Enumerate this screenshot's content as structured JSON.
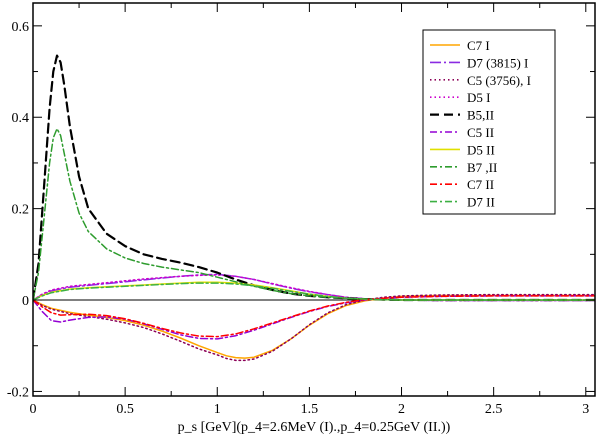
{
  "chart_data": {
    "type": "line",
    "xlabel": "p_s [GeV](p_4=2.6MeV (I).,p_4=0.25GeV (II.))",
    "ylabel": "",
    "xlim": [
      0,
      3.05
    ],
    "ylim": [
      -0.21,
      0.65
    ],
    "xticks": [
      0,
      0.5,
      1,
      1.5,
      2,
      2.5,
      3
    ],
    "xtick_labels": [
      "0",
      "0.5",
      "1",
      "1.5",
      "2",
      "2.5",
      "3"
    ],
    "yticks": [
      -0.2,
      0,
      0.2,
      0.4,
      0.6
    ],
    "ytick_labels": [
      "-0.2",
      "0",
      "0.2",
      "0.4",
      "0.6"
    ],
    "grid": false,
    "legend_position": "top-right",
    "series": [
      {
        "name": "C7 I",
        "color": "#ffa500",
        "dash": "solid",
        "x": [
          0,
          0.05,
          0.1,
          0.2,
          0.3,
          0.4,
          0.5,
          0.6,
          0.7,
          0.8,
          0.9,
          1.0,
          1.05,
          1.1,
          1.15,
          1.2,
          1.3,
          1.4,
          1.5,
          1.6,
          1.7,
          1.8,
          1.9,
          2.0,
          2.2,
          2.5,
          2.8,
          3.05
        ],
        "y": [
          0,
          -0.01,
          -0.018,
          -0.027,
          -0.033,
          -0.038,
          -0.045,
          -0.055,
          -0.068,
          -0.083,
          -0.1,
          -0.115,
          -0.122,
          -0.126,
          -0.127,
          -0.125,
          -0.11,
          -0.085,
          -0.055,
          -0.03,
          -0.012,
          -0.002,
          0.004,
          0.008,
          0.01,
          0.01,
          0.01,
          0.01
        ]
      },
      {
        "name": "D7 (3815) I",
        "color": "#8a2be2",
        "dash": "long-dashdot",
        "x": [
          0,
          0.05,
          0.1,
          0.2,
          0.3,
          0.4,
          0.5,
          0.6,
          0.7,
          0.8,
          0.9,
          1.0,
          1.1,
          1.2,
          1.3,
          1.4,
          1.5,
          1.6,
          1.7,
          1.8,
          1.9,
          2.0,
          2.2,
          2.5,
          2.8,
          3.05
        ],
        "y": [
          0,
          0.012,
          0.02,
          0.028,
          0.032,
          0.036,
          0.04,
          0.044,
          0.048,
          0.052,
          0.055,
          0.056,
          0.052,
          0.045,
          0.035,
          0.026,
          0.018,
          0.012,
          0.006,
          0.003,
          0.001,
          0,
          -0.001,
          -0.001,
          -0.001,
          -0.001
        ]
      },
      {
        "name": "C5 (3756), I",
        "color": "#8b0057",
        "dash": "dotted",
        "x": [
          0,
          0.05,
          0.1,
          0.2,
          0.3,
          0.4,
          0.5,
          0.6,
          0.7,
          0.8,
          0.9,
          1.0,
          1.05,
          1.1,
          1.15,
          1.2,
          1.3,
          1.4,
          1.5,
          1.6,
          1.7,
          1.8,
          1.9,
          2.0,
          2.2,
          2.5,
          2.8,
          3.05
        ],
        "y": [
          0,
          -0.012,
          -0.02,
          -0.03,
          -0.036,
          -0.042,
          -0.05,
          -0.06,
          -0.074,
          -0.09,
          -0.107,
          -0.12,
          -0.128,
          -0.132,
          -0.132,
          -0.129,
          -0.112,
          -0.085,
          -0.054,
          -0.028,
          -0.01,
          0,
          0.006,
          0.009,
          0.011,
          0.012,
          0.012,
          0.012
        ]
      },
      {
        "name": "D5 I",
        "color": "#cc00cc",
        "dash": "dotted",
        "x": [
          0,
          0.05,
          0.1,
          0.2,
          0.3,
          0.4,
          0.5,
          0.6,
          0.7,
          0.8,
          0.9,
          1.0,
          1.1,
          1.2,
          1.3,
          1.4,
          1.5,
          1.6,
          1.7,
          1.8,
          1.9,
          2.0,
          2.2,
          2.5,
          2.8,
          3.05
        ],
        "y": [
          0,
          0.013,
          0.022,
          0.03,
          0.034,
          0.038,
          0.042,
          0.046,
          0.049,
          0.052,
          0.054,
          0.055,
          0.052,
          0.045,
          0.036,
          0.027,
          0.019,
          0.012,
          0.006,
          0.003,
          0.001,
          0,
          -0.001,
          -0.001,
          -0.001,
          -0.001
        ]
      },
      {
        "name": "B5,II",
        "color": "#000000",
        "dash": "dashed",
        "x": [
          0,
          0.03,
          0.06,
          0.09,
          0.11,
          0.13,
          0.15,
          0.17,
          0.2,
          0.25,
          0.3,
          0.4,
          0.5,
          0.6,
          0.7,
          0.8,
          0.9,
          1.0,
          1.1,
          1.2,
          1.3,
          1.4,
          1.5,
          1.6,
          1.7,
          1.8,
          1.9,
          2.0,
          2.2,
          2.5,
          2.8,
          3.05
        ],
        "y": [
          0,
          0.08,
          0.25,
          0.42,
          0.5,
          0.535,
          0.52,
          0.47,
          0.38,
          0.27,
          0.2,
          0.145,
          0.118,
          0.1,
          0.09,
          0.082,
          0.072,
          0.06,
          0.045,
          0.032,
          0.022,
          0.014,
          0.009,
          0.006,
          0.004,
          0.002,
          0.001,
          0,
          0,
          0,
          0,
          0
        ]
      },
      {
        "name": "C5 II",
        "color": "#9400d3",
        "dash": "dashdot",
        "x": [
          0,
          0.05,
          0.1,
          0.15,
          0.2,
          0.3,
          0.4,
          0.5,
          0.6,
          0.7,
          0.8,
          0.9,
          1.0,
          1.1,
          1.2,
          1.3,
          1.4,
          1.5,
          1.6,
          1.7,
          1.8,
          1.9,
          2.0,
          2.2,
          2.5,
          2.8,
          3.05
        ],
        "y": [
          0,
          -0.025,
          -0.045,
          -0.048,
          -0.044,
          -0.038,
          -0.037,
          -0.042,
          -0.052,
          -0.064,
          -0.076,
          -0.084,
          -0.085,
          -0.078,
          -0.066,
          -0.052,
          -0.038,
          -0.025,
          -0.014,
          -0.006,
          0,
          0.004,
          0.006,
          0.008,
          0.009,
          0.009,
          0.009
        ]
      },
      {
        "name": "D5 II",
        "color": "#e0e000",
        "dash": "solid",
        "x": [
          0,
          0.05,
          0.1,
          0.2,
          0.3,
          0.4,
          0.5,
          0.6,
          0.7,
          0.8,
          0.9,
          1.0,
          1.1,
          1.2,
          1.3,
          1.4,
          1.5,
          1.6,
          1.7,
          1.8,
          1.9,
          2.0,
          2.2,
          2.5,
          2.8,
          3.05
        ],
        "y": [
          0,
          0.01,
          0.017,
          0.024,
          0.027,
          0.029,
          0.031,
          0.033,
          0.035,
          0.037,
          0.039,
          0.039,
          0.037,
          0.033,
          0.027,
          0.02,
          0.013,
          0.008,
          0.004,
          0.002,
          0.001,
          0,
          0,
          0,
          0,
          0
        ]
      },
      {
        "name": "B7 ,II",
        "color": "#2e9c2e",
        "dash": "dashdot",
        "x": [
          0,
          0.03,
          0.06,
          0.09,
          0.11,
          0.13,
          0.15,
          0.17,
          0.2,
          0.25,
          0.3,
          0.4,
          0.5,
          0.6,
          0.7,
          0.8,
          0.9,
          1.0,
          1.1,
          1.2,
          1.3,
          1.4,
          1.5,
          1.6,
          1.7,
          1.8,
          1.9,
          2.0,
          2.2,
          2.5,
          2.8,
          3.05
        ],
        "y": [
          0,
          0.06,
          0.18,
          0.3,
          0.355,
          0.375,
          0.36,
          0.32,
          0.26,
          0.19,
          0.15,
          0.112,
          0.092,
          0.08,
          0.072,
          0.066,
          0.06,
          0.05,
          0.04,
          0.03,
          0.021,
          0.014,
          0.009,
          0.006,
          0.004,
          0.002,
          0.001,
          0,
          0,
          0,
          0,
          0
        ]
      },
      {
        "name": "C7 II",
        "color": "#ff0000",
        "dash": "dashdot",
        "x": [
          0,
          0.05,
          0.1,
          0.15,
          0.2,
          0.3,
          0.4,
          0.5,
          0.6,
          0.7,
          0.8,
          0.9,
          1.0,
          1.1,
          1.2,
          1.3,
          1.4,
          1.5,
          1.6,
          1.7,
          1.8,
          1.9,
          2.0,
          2.2,
          2.5,
          2.8,
          3.05
        ],
        "y": [
          0,
          -0.015,
          -0.028,
          -0.033,
          -0.032,
          -0.031,
          -0.034,
          -0.041,
          -0.051,
          -0.062,
          -0.072,
          -0.079,
          -0.08,
          -0.074,
          -0.063,
          -0.05,
          -0.037,
          -0.024,
          -0.013,
          -0.005,
          0.001,
          0.004,
          0.006,
          0.008,
          0.009,
          0.009,
          0.009
        ]
      },
      {
        "name": "D7 II",
        "color": "#3cb043",
        "dash": "dashdot",
        "x": [
          0,
          0.05,
          0.1,
          0.2,
          0.3,
          0.4,
          0.5,
          0.6,
          0.7,
          0.8,
          0.9,
          1.0,
          1.1,
          1.2,
          1.3,
          1.4,
          1.5,
          1.6,
          1.7,
          1.8,
          1.9,
          2.0,
          2.2,
          2.5,
          2.8,
          3.05
        ],
        "y": [
          0,
          0.009,
          0.016,
          0.023,
          0.026,
          0.028,
          0.03,
          0.032,
          0.034,
          0.036,
          0.037,
          0.037,
          0.035,
          0.031,
          0.026,
          0.019,
          0.013,
          0.008,
          0.004,
          0.002,
          0.001,
          0,
          0,
          0,
          0,
          0
        ]
      }
    ]
  }
}
